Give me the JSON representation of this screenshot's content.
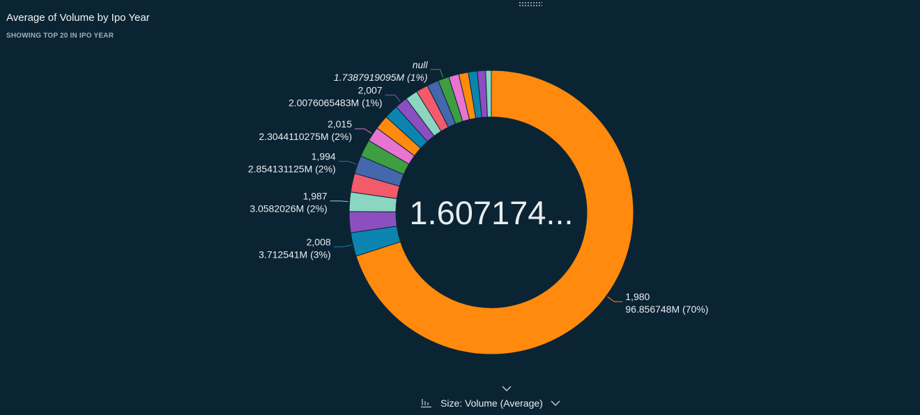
{
  "header": {
    "title": "Average of Volume by Ipo Year",
    "subtitle": "SHOWING TOP 20 IN IPO YEAR"
  },
  "footer": {
    "size_label": "Size: Volume (Average)"
  },
  "colors": {
    "background": "#0b2434",
    "palette": [
      "#ff8a0d",
      "#0b85b0",
      "#8c4fbf",
      "#8ad6c0",
      "#f25b6a",
      "#4467ad",
      "#3e9e41",
      "#e973d1",
      "#ff8a0d",
      "#0b85b0",
      "#8c4fbf",
      "#8ad6c0",
      "#f25b6a",
      "#4467ad",
      "#3e9e41",
      "#e973d1",
      "#ff8a0d",
      "#0b85b0",
      "#8c4fbf",
      "#8ad6c0"
    ]
  },
  "chart_data": {
    "type": "pie",
    "donut": true,
    "center_value": "1.607174...",
    "slices": [
      {
        "label": "1,980",
        "value": 96.856748,
        "display": "96.856748M (70%)",
        "labeled": true
      },
      {
        "label": "2,008",
        "value": 3.712541,
        "display": "3.712541M (3%)",
        "labeled": true
      },
      {
        "label": "",
        "value": 3.3,
        "display": "",
        "labeled": false
      },
      {
        "label": "1,987",
        "value": 3.0582026,
        "display": "3.0582026M (2%)",
        "labeled": true
      },
      {
        "label": "",
        "value": 2.95,
        "display": "",
        "labeled": false
      },
      {
        "label": "1,994",
        "value": 2.854131125,
        "display": "2.854131125M (2%)",
        "labeled": true
      },
      {
        "label": "",
        "value": 2.7,
        "display": "",
        "labeled": false
      },
      {
        "label": "2,015",
        "value": 2.3044110275,
        "display": "2.3044110275M (2%)",
        "labeled": true
      },
      {
        "label": "",
        "value": 2.25,
        "display": "",
        "labeled": false
      },
      {
        "label": "",
        "value": 2.2,
        "display": "",
        "labeled": false
      },
      {
        "label": "2,007",
        "value": 2.0076065483,
        "display": "2.0076065483M (1%)",
        "labeled": true
      },
      {
        "label": "",
        "value": 1.95,
        "display": "",
        "labeled": false
      },
      {
        "label": "",
        "value": 1.9,
        "display": "",
        "labeled": false
      },
      {
        "label": "",
        "value": 1.85,
        "display": "",
        "labeled": false
      },
      {
        "label": "null",
        "value": 1.7387919095,
        "display": "1.7387919095M (1%)",
        "labeled": true
      },
      {
        "label": "",
        "value": 1.6,
        "display": "",
        "labeled": false
      },
      {
        "label": "",
        "value": 1.5,
        "display": "",
        "labeled": false
      },
      {
        "label": "",
        "value": 1.4,
        "display": "",
        "labeled": false
      },
      {
        "label": "",
        "value": 1.3,
        "display": "",
        "labeled": false
      },
      {
        "label": "",
        "value": 0.9,
        "display": "",
        "labeled": false
      }
    ]
  }
}
